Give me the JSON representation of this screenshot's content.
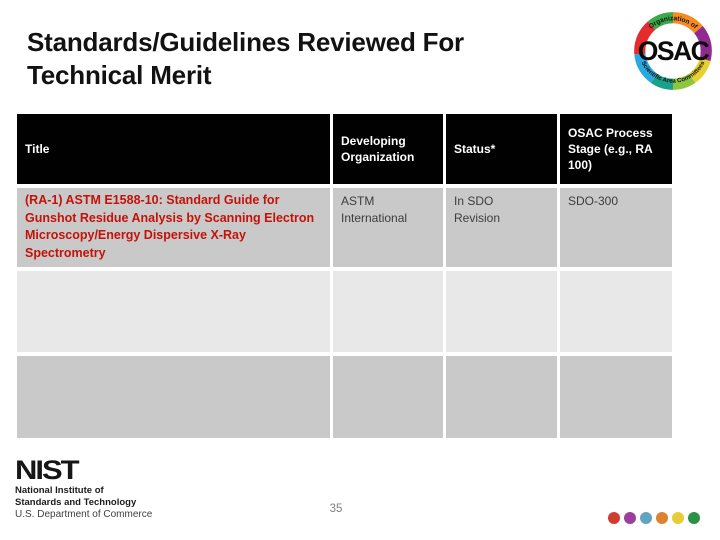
{
  "slide": {
    "title_line1": "Standards/Guidelines Reviewed For",
    "title_line2": "Technical Merit",
    "page_number": "35"
  },
  "osac_logo": {
    "wordmark": "OSAC",
    "top_arc_text": "Organization of",
    "bottom_arc_text": "Scientific Area Committees",
    "ring_segments": [
      {
        "color": "#f68b1f",
        "start": 0,
        "length": 13.9
      },
      {
        "color": "#8f2a90",
        "start": 13.9,
        "length": 15.3
      },
      {
        "color": "#e7d02f",
        "start": 29.2,
        "length": 11.1
      },
      {
        "color": "#8cc63e",
        "start": 40.3,
        "length": 9.7
      },
      {
        "color": "#1aa189",
        "start": 50.0,
        "length": 9.7
      },
      {
        "color": "#2aa9e0",
        "start": 59.7,
        "length": 13.9
      },
      {
        "color": "#e62b2e",
        "start": 73.6,
        "length": 15.3
      },
      {
        "color": "#3aaa4a",
        "start": 88.9,
        "length": 11.1
      }
    ]
  },
  "table": {
    "headers": [
      "Title",
      "Developing Organization",
      "Status*",
      "OSAC Process Stage (e.g., RA 100)"
    ],
    "rows": [
      {
        "title": "(RA-1) ASTM E1588-10: Standard Guide for Gunshot Residue Analysis by Scanning Electron Microscopy/Energy Dispersive X-Ray Spectrometry",
        "developing_organization": "ASTM International",
        "status": "In SDO Revision",
        "osac_process_stage": "SDO-300"
      },
      {
        "title": "",
        "developing_organization": "",
        "status": "",
        "osac_process_stage": ""
      },
      {
        "title": "",
        "developing_organization": "",
        "status": "",
        "osac_process_stage": ""
      }
    ],
    "colors": {
      "header_bg": "#010101",
      "header_text": "#ffffff",
      "row_odd_bg": "#c9c9c9",
      "row_even_bg": "#e8e8e8",
      "title_text": "#c41209"
    }
  },
  "nist_logo": {
    "wordmark": "NIST",
    "line1": "National Institute of",
    "line2": "Standards and Technology",
    "line3": "U.S. Department of Commerce"
  },
  "footer_dots": {
    "colors": [
      "#d13b30",
      "#9c3f99",
      "#63a3c2",
      "#de8230",
      "#e6cd37",
      "#2b9144"
    ]
  }
}
